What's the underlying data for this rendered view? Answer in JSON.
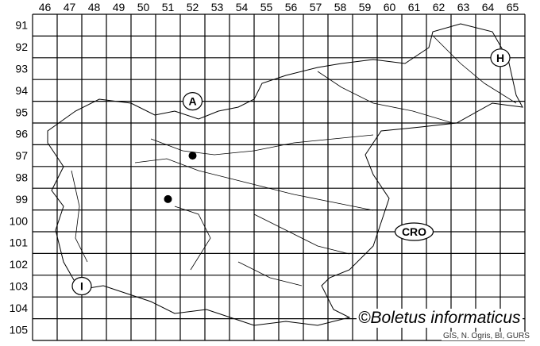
{
  "grid": {
    "columns": [
      "46",
      "47",
      "48",
      "49",
      "50",
      "51",
      "52",
      "53",
      "54",
      "55",
      "56",
      "57",
      "58",
      "59",
      "60",
      "61",
      "62",
      "63",
      "64",
      "65"
    ],
    "rows": [
      "91",
      "92",
      "93",
      "94",
      "95",
      "96",
      "97",
      "98",
      "99",
      "100",
      "101",
      "102",
      "103",
      "104",
      "105"
    ]
  },
  "country_labels": [
    {
      "text": "A",
      "col": 52,
      "row": 94.5
    },
    {
      "text": "H",
      "col": 64.5,
      "row": 92.5
    },
    {
      "text": "CRO",
      "col": 61,
      "row": 100.5
    },
    {
      "text": "I",
      "col": 47.5,
      "row": 103
    }
  ],
  "records": [
    {
      "col": 52,
      "row": 97
    },
    {
      "col": 51,
      "row": 99
    }
  ],
  "credit": "©Boletus informaticus",
  "source": "GIS, N. Ogris, BI, GURS",
  "colors": {
    "lines": "#000000",
    "background": "#ffffff"
  }
}
